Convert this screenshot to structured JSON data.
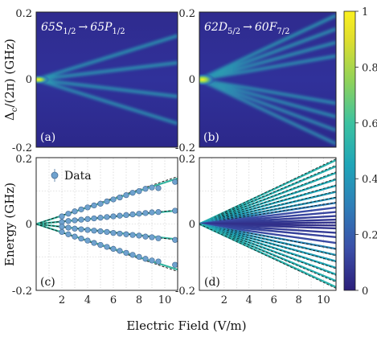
{
  "chart_data": [
    {
      "panel_label": "(a)",
      "type": "heatmap",
      "transition_parts": {
        "from": "65S",
        "from_sub": "1/2",
        "arrow": "→",
        "to": "65P",
        "to_sub": "1/2"
      },
      "ylabel": {
        "main": "Δ",
        "sub": "c",
        "rest": "/(2π) (GHz)"
      },
      "ylim": [
        -0.2,
        0.2
      ],
      "xlim": [
        0,
        11
      ],
      "yticks": [
        "0.2",
        "0",
        "-0.2"
      ],
      "branches": [
        0.13,
        0.05,
        -0.05,
        -0.13
      ]
    },
    {
      "panel_label": "(b)",
      "type": "heatmap",
      "transition_parts": {
        "from": "62D",
        "from_sub": "5/2",
        "arrow": "→",
        "to": "60F",
        "to_sub": "7/2"
      },
      "ylim": [
        -0.2,
        0.2
      ],
      "xlim": [
        0,
        11
      ],
      "yticks": [
        "0.2",
        "0",
        "-0.2"
      ],
      "branches": [
        0.19,
        0.15,
        0.11,
        0.07,
        -0.07,
        -0.11,
        -0.15,
        -0.19
      ]
    },
    {
      "panel_label": "(c)",
      "type": "scatter",
      "legend": "Data",
      "ylabel": "Energy (GHz)",
      "xlim": [
        0,
        11
      ],
      "ylim": [
        -0.2,
        0.2
      ],
      "xticks": [
        "2",
        "4",
        "6",
        "8",
        "10"
      ],
      "yticks": [
        "0.2",
        "0",
        "-0.2"
      ],
      "grid": true,
      "data_x": [
        2,
        2.5,
        3,
        3.5,
        4,
        4.5,
        5,
        5.5,
        6,
        6.5,
        7,
        7.5,
        8,
        8.5,
        9,
        9.5,
        10.8
      ],
      "series": [
        {
          "slope": 0.0125,
          "values": [
            0.023,
            0.031,
            0.038,
            0.044,
            0.05,
            0.056,
            0.061,
            0.068,
            0.074,
            0.08,
            0.087,
            0.094,
            0.099,
            0.106,
            0.11,
            0.108,
            0.127
          ]
        },
        {
          "slope": 0.0037,
          "values": [
            0.006,
            0.009,
            0.011,
            0.013,
            0.015,
            0.017,
            0.019,
            0.021,
            0.023,
            0.025,
            0.027,
            0.029,
            0.031,
            0.033,
            0.035,
            0.036,
            0.04
          ]
        },
        {
          "slope": -0.0042,
          "values": [
            -0.008,
            -0.011,
            -0.014,
            -0.016,
            -0.018,
            -0.02,
            -0.022,
            -0.024,
            -0.027,
            -0.029,
            -0.031,
            -0.033,
            -0.035,
            -0.038,
            -0.04,
            -0.043,
            -0.048
          ]
        },
        {
          "slope": -0.0125,
          "values": [
            -0.024,
            -0.031,
            -0.038,
            -0.044,
            -0.05,
            -0.057,
            -0.063,
            -0.069,
            -0.075,
            -0.081,
            -0.087,
            -0.093,
            -0.099,
            -0.105,
            -0.11,
            -0.113,
            -0.123
          ]
        }
      ]
    },
    {
      "panel_label": "(d)",
      "type": "line",
      "xlim": [
        0,
        11
      ],
      "ylim": [
        -0.2,
        0.2
      ],
      "xticks": [
        "2",
        "4",
        "6",
        "8",
        "10"
      ],
      "yticks": [
        "0.2",
        "0",
        "-0.2"
      ],
      "grid": true,
      "state_slopes": [
        0.0175,
        0.0158,
        0.014,
        0.0122,
        0.0105,
        0.0088,
        0.0072,
        0.0058,
        0.0045,
        0.0033,
        0.0022,
        0.0012,
        0.0004,
        -0.0004,
        -0.0012,
        -0.0024,
        -0.0036,
        -0.0052,
        -0.0068,
        -0.0085,
        -0.0102,
        -0.012,
        -0.0138,
        -0.0156,
        -0.0173
      ],
      "state_weights": [
        0.52,
        0.5,
        0.49,
        0.47,
        0.45,
        0.42,
        0.39,
        0.3,
        0.14,
        0.12,
        0.1,
        0.08,
        0.06,
        0.05,
        0.07,
        0.09,
        0.11,
        0.13,
        0.33,
        0.4,
        0.43,
        0.46,
        0.48,
        0.5,
        0.52
      ]
    }
  ],
  "colorbar": {
    "ticks": [
      "1",
      "0.8",
      "0.6",
      "0.4",
      "0.2",
      "0"
    ],
    "range": [
      0,
      1
    ],
    "colormap": [
      "#440154",
      "#3b528b",
      "#21918c",
      "#5ec962",
      "#fde725"
    ]
  },
  "xlabel": "Electric Field (V/m)",
  "energy_ylabel": "Energy (GHz)"
}
